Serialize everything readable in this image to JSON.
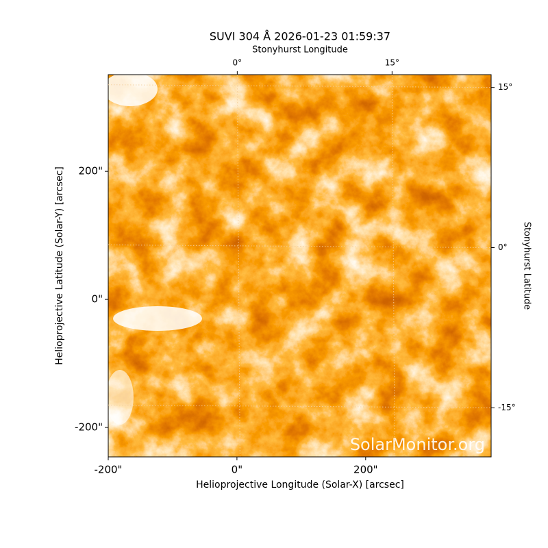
{
  "chart_data": {
    "type": "image",
    "title": "SUVI 304 Å 2026-01-23 01:59:37",
    "xlabel": "Helioprojective Longitude (Solar-X) [arcsec]",
    "ylabel": "Helioprojective Latitude (Solar-Y) [arcsec]",
    "x2label": "Stonyhurst Longitude",
    "y2label": "Stonyhurst Latitude",
    "watermark": "SolarMonitor.org",
    "xlim": [
      -200,
      395
    ],
    "ylim": [
      -246,
      351
    ],
    "xticks": [
      {
        "value": -200,
        "label": "-200\""
      },
      {
        "value": 0,
        "label": "0\""
      },
      {
        "value": 200,
        "label": "200\""
      }
    ],
    "yticks": [
      {
        "value": -200,
        "label": "-200\""
      },
      {
        "value": 0,
        "label": "0\""
      },
      {
        "value": 200,
        "label": "200\""
      }
    ],
    "x2lim": [
      -12.5,
      24.6
    ],
    "x2ticks": [
      {
        "value": 0,
        "label": "0°"
      },
      {
        "value": 15,
        "label": "15°"
      }
    ],
    "y2lim": [
      -19.6,
      16.2
    ],
    "y2ticks": [
      {
        "value": -15,
        "label": "-15°"
      },
      {
        "value": 0,
        "label": "0°"
      },
      {
        "value": 15,
        "label": "15°"
      }
    ],
    "grid": true
  }
}
